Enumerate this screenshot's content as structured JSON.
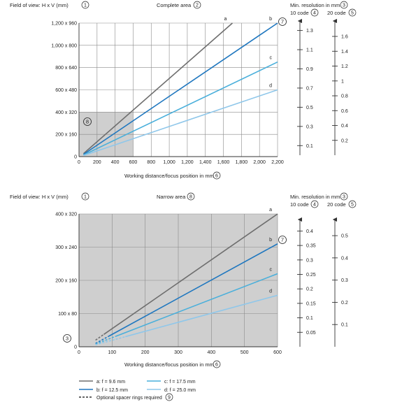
{
  "colors": {
    "a": "#6e6e6e",
    "b": "#1f77bf",
    "c": "#49afdb",
    "d": "#8fc7ea",
    "shade": "#cfcfcf",
    "grid": "#8a8a8a",
    "axis": "#333333"
  },
  "top": {
    "fov_title": "Field of view: H x V (mm)",
    "fov_marker": "1",
    "area_title": "Complete area",
    "area_marker": "2",
    "res_title": "Min. resolution in mm",
    "res_marker": "3",
    "code10_label": "10 code",
    "code10_marker": "4",
    "code20_label": "20 code",
    "code20_marker": "5",
    "xlabel": "Working distance/focus position in mm",
    "xlabel_marker": "6",
    "lens_marker": "7",
    "narrow_marker": "8"
  },
  "bottom": {
    "fov_title": "Field of view: H x V (mm)",
    "fov_marker": "1",
    "area_title": "Narrow area",
    "area_marker": "8",
    "res_title": "Min. resolution in mm",
    "res_marker": "3",
    "code10_label": "10 code",
    "code10_marker": "4",
    "code20_label": "20 code",
    "code20_marker": "5",
    "xlabel": "Working distance/focus position in mm",
    "xlabel_marker": "6",
    "lens_marker": "7",
    "side_marker": "3"
  },
  "legend": {
    "items": [
      {
        "key": "a",
        "label": "a: f = 9.6 mm"
      },
      {
        "key": "c",
        "label": "c: f = 17.5 mm"
      },
      {
        "key": "b",
        "label": "b: f = 12.5 mm"
      },
      {
        "key": "d",
        "label": "d: f = 25.0 mm"
      }
    ],
    "spacer_label": "Optional spacer rings required",
    "spacer_marker": "9"
  },
  "chart_data": [
    {
      "type": "line",
      "title": "Complete area",
      "xlabel": "Working distance/focus position in mm",
      "ylabel": "Field of view: H x V (mm)",
      "xlim": [
        0,
        2200
      ],
      "ylim": [
        0,
        1200
      ],
      "x_ticks": [
        0,
        200,
        400,
        600,
        800,
        1000,
        1200,
        1400,
        1600,
        1800,
        2000,
        2200
      ],
      "x_tick_labels": [
        "0",
        "200",
        "400",
        "600",
        "800",
        "1,000",
        "1,200",
        "1,400",
        "1,600",
        "1,800",
        "2,000",
        "2,200"
      ],
      "y_ticks": [
        0,
        200,
        400,
        600,
        800,
        1000,
        1200
      ],
      "y_tick_labels": [
        "0",
        "200 x 160",
        "400 x 320",
        "600 x 480",
        "800 x 640",
        "1,000 x 800",
        "1,200 x 960"
      ],
      "grid": true,
      "shaded_region": {
        "x": [
          0,
          600
        ],
        "y": [
          0,
          400
        ]
      },
      "series": [
        {
          "name": "a",
          "points": [
            [
              50,
              27
            ],
            [
              1700,
              1200
            ]
          ]
        },
        {
          "name": "b",
          "points": [
            [
              50,
              20
            ],
            [
              2200,
              1200
            ]
          ]
        },
        {
          "name": "c",
          "points": [
            [
              50,
              14
            ],
            [
              2200,
              850
            ]
          ]
        },
        {
          "name": "d",
          "points": [
            [
              50,
              10
            ],
            [
              2200,
              600
            ]
          ]
        }
      ],
      "resolution_axes": [
        {
          "name": "10 code",
          "ticks": [
            0.1,
            0.3,
            0.5,
            0.7,
            0.9,
            1.1,
            1.3
          ],
          "labeled": [
            0.1,
            0.3,
            0.5,
            0.7,
            0.9,
            1.1,
            1.3
          ],
          "range": [
            0,
            1.37
          ]
        },
        {
          "name": "20 code",
          "ticks": [
            0.2,
            0.4,
            0.6,
            0.8,
            1.0,
            1.2,
            1.4,
            1.6
          ],
          "labeled": [
            0.2,
            0.4,
            0.6,
            0.8,
            1.0,
            1.2,
            1.4,
            1.6
          ],
          "range": [
            0,
            1.77
          ]
        }
      ]
    },
    {
      "type": "line",
      "title": "Narrow area",
      "xlabel": "Working distance/focus position in mm",
      "ylabel": "Field of view: H x V (mm)",
      "xlim": [
        0,
        600
      ],
      "ylim": [
        0,
        400
      ],
      "x_ticks": [
        0,
        100,
        200,
        300,
        400,
        500,
        600
      ],
      "x_tick_labels": [
        "0",
        "100",
        "200",
        "300",
        "400",
        "500",
        "600"
      ],
      "y_ticks": [
        0,
        100,
        200,
        300,
        400
      ],
      "y_tick_labels": [
        "0",
        "100 x 80",
        "200 x 160",
        "300 x 240",
        "400 x 320"
      ],
      "grid": true,
      "shaded_region": {
        "x": [
          0,
          600
        ],
        "y": [
          0,
          400
        ]
      },
      "series": [
        {
          "name": "a",
          "points": [
            [
              50,
              20
            ],
            [
              600,
              400
            ]
          ],
          "dashed_to_x": 75
        },
        {
          "name": "b",
          "points": [
            [
              50,
              10
            ],
            [
              600,
              310
            ]
          ],
          "dashed_to_x": 90
        },
        {
          "name": "c",
          "points": [
            [
              50,
              8
            ],
            [
              600,
              220
            ]
          ],
          "dashed_to_x": 110
        },
        {
          "name": "d",
          "points": [
            [
              50,
              6
            ],
            [
              600,
              155
            ]
          ],
          "dashed_to_x": 140
        }
      ],
      "resolution_axes": [
        {
          "name": "10 code",
          "ticks": [
            0.05,
            0.1,
            0.15,
            0.2,
            0.25,
            0.3,
            0.35,
            0.4
          ],
          "labeled": [
            0.05,
            0.1,
            0.15,
            0.2,
            0.25,
            0.3,
            0.35,
            0.4
          ],
          "range": [
            0,
            0.43
          ]
        },
        {
          "name": "20 code",
          "ticks": [
            0.1,
            0.2,
            0.3,
            0.4,
            0.5
          ],
          "labeled": [
            0.1,
            0.2,
            0.3,
            0.4,
            0.5
          ],
          "range": [
            0,
            0.56
          ]
        }
      ]
    }
  ]
}
